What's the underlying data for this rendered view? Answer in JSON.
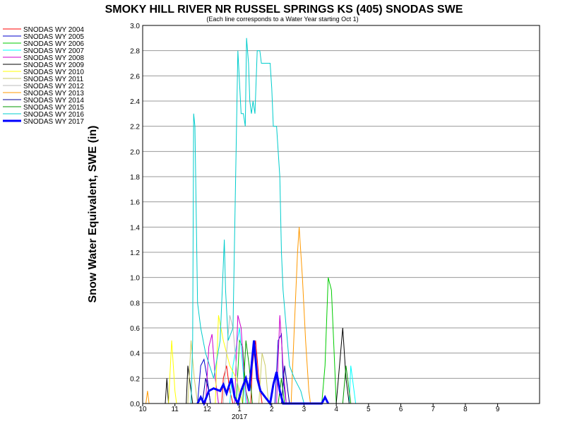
{
  "chart_data": {
    "type": "line",
    "title": "SMOKY HILL RIVER NR RUSSEL SPRINGS KS (405) SNODAS SWE",
    "subtitle": "(Each line corresponds to a Water Year starting Oct 1)",
    "ylabel": "Snow Water Equivalent, SWE (in)",
    "xlabel": "",
    "ylim": [
      0,
      3.0
    ],
    "yticks": [
      "0.0",
      "0.2",
      "0.4",
      "0.6",
      "0.8",
      "1.0",
      "1.2",
      "1.4",
      "1.6",
      "1.8",
      "2.0",
      "2.2",
      "2.4",
      "2.6",
      "2.8",
      "3.0"
    ],
    "xlim": [
      0,
      12.3
    ],
    "xticks": [
      {
        "value": 0.0,
        "label": "10"
      },
      {
        "value": 1.0,
        "label": "11"
      },
      {
        "value": 2.0,
        "label": "12"
      },
      {
        "value": 3.0,
        "label": "1"
      },
      {
        "value": 4.0,
        "label": "2"
      },
      {
        "value": 5.0,
        "label": "3"
      },
      {
        "value": 6.0,
        "label": "4"
      },
      {
        "value": 7.0,
        "label": "5"
      },
      {
        "value": 8.0,
        "label": "6"
      },
      {
        "value": 9.0,
        "label": "7"
      },
      {
        "value": 10.0,
        "label": "8"
      },
      {
        "value": 11.0,
        "label": "9"
      }
    ],
    "year_label": {
      "value": 3.0,
      "label": "2017"
    },
    "grid": true,
    "legend_position": "left",
    "series": [
      {
        "name": "SNODAS WY 2004",
        "color": "#ff0000",
        "width": 1,
        "points": [
          [
            2.45,
            0
          ],
          [
            2.5,
            0.2
          ],
          [
            2.6,
            0.3
          ],
          [
            2.7,
            0.1
          ],
          [
            2.8,
            0
          ],
          [
            3.35,
            0
          ],
          [
            3.4,
            0.3
          ],
          [
            3.5,
            0.5
          ],
          [
            3.6,
            0.2
          ],
          [
            3.7,
            0
          ]
        ]
      },
      {
        "name": "SNODAS WY 2005",
        "color": "#0000cc",
        "width": 1,
        "points": [
          [
            1.7,
            0
          ],
          [
            1.8,
            0.3
          ],
          [
            1.9,
            0.35
          ],
          [
            2.0,
            0.2
          ],
          [
            2.1,
            0
          ],
          [
            4.1,
            0
          ],
          [
            4.2,
            0.5
          ],
          [
            4.3,
            0.55
          ],
          [
            4.35,
            0.2
          ],
          [
            4.45,
            0
          ]
        ]
      },
      {
        "name": "SNODAS WY 2006",
        "color": "#00cc00",
        "width": 1,
        "points": [
          [
            2.9,
            0
          ],
          [
            3.0,
            0.5
          ],
          [
            3.1,
            0.45
          ],
          [
            3.2,
            0.1
          ],
          [
            3.3,
            0
          ],
          [
            5.55,
            0
          ],
          [
            5.65,
            0.3
          ],
          [
            5.75,
            1.0
          ],
          [
            5.85,
            0.9
          ],
          [
            5.95,
            0.3
          ],
          [
            6.0,
            0
          ]
        ]
      },
      {
        "name": "SNODAS WY 2007",
        "color": "#00ffff",
        "width": 1,
        "points": [
          [
            2.7,
            0
          ],
          [
            2.8,
            0.3
          ],
          [
            2.9,
            0.45
          ],
          [
            3.0,
            0.6
          ],
          [
            3.1,
            0.3
          ],
          [
            3.2,
            0
          ],
          [
            6.4,
            0
          ],
          [
            6.45,
            0.3
          ],
          [
            6.5,
            0.2
          ],
          [
            6.6,
            0
          ]
        ]
      },
      {
        "name": "SNODAS WY 2008",
        "color": "#cc00cc",
        "width": 1,
        "points": [
          [
            1.95,
            0
          ],
          [
            2.05,
            0.45
          ],
          [
            2.15,
            0.55
          ],
          [
            2.25,
            0.2
          ],
          [
            2.35,
            0
          ],
          [
            2.85,
            0
          ],
          [
            2.95,
            0.7
          ],
          [
            3.05,
            0.6
          ],
          [
            3.15,
            0.2
          ],
          [
            3.25,
            0
          ],
          [
            4.15,
            0
          ],
          [
            4.25,
            0.7
          ],
          [
            4.35,
            0.3
          ],
          [
            4.45,
            0
          ]
        ]
      },
      {
        "name": "SNODAS WY 2009",
        "color": "#000000",
        "width": 1,
        "points": [
          [
            0.7,
            0
          ],
          [
            0.75,
            0.2
          ],
          [
            0.8,
            0
          ],
          [
            1.35,
            0
          ],
          [
            1.4,
            0.3
          ],
          [
            1.5,
            0.1
          ],
          [
            1.55,
            0
          ],
          [
            6.0,
            0
          ],
          [
            6.1,
            0.3
          ],
          [
            6.2,
            0.6
          ],
          [
            6.3,
            0.2
          ],
          [
            6.4,
            0
          ]
        ]
      },
      {
        "name": "SNODAS WY 2010",
        "color": "#ffff00",
        "width": 1,
        "points": [
          [
            0.8,
            0
          ],
          [
            0.9,
            0.5
          ],
          [
            1.0,
            0.1
          ],
          [
            1.05,
            0
          ],
          [
            2.25,
            0
          ],
          [
            2.35,
            0.7
          ],
          [
            2.5,
            0.5
          ],
          [
            2.7,
            0.3
          ],
          [
            2.9,
            0.2
          ],
          [
            3.0,
            0.1
          ],
          [
            3.1,
            0
          ]
        ]
      },
      {
        "name": "SNODAS WY 2011",
        "color": "#cccc66",
        "width": 1,
        "points": [
          [
            1.4,
            0
          ],
          [
            1.5,
            0.5
          ],
          [
            1.6,
            0.2
          ],
          [
            1.7,
            0
          ],
          [
            3.6,
            0
          ],
          [
            3.7,
            0.4
          ],
          [
            3.8,
            0.3
          ],
          [
            3.9,
            0
          ]
        ]
      },
      {
        "name": "SNODAS WY 2012",
        "color": "#bbbbbb",
        "width": 1,
        "points": [
          [
            2.5,
            0
          ],
          [
            2.6,
            0.4
          ],
          [
            2.7,
            0.7
          ],
          [
            2.8,
            0.6
          ],
          [
            2.9,
            0.3
          ],
          [
            3.0,
            0
          ]
        ]
      },
      {
        "name": "SNODAS WY 2013",
        "color": "#ff9900",
        "width": 1,
        "points": [
          [
            0.1,
            0
          ],
          [
            0.15,
            0.1
          ],
          [
            0.2,
            0
          ],
          [
            4.6,
            0
          ],
          [
            4.7,
            0.6
          ],
          [
            4.8,
            1.2
          ],
          [
            4.85,
            1.4
          ],
          [
            4.95,
            1.0
          ],
          [
            5.05,
            0.5
          ],
          [
            5.15,
            0.1
          ],
          [
            5.2,
            0
          ]
        ]
      },
      {
        "name": "SNODAS WY 2014",
        "color": "#000099",
        "width": 1,
        "points": [
          [
            1.85,
            0
          ],
          [
            1.95,
            0.2
          ],
          [
            2.05,
            0.1
          ],
          [
            2.1,
            0
          ],
          [
            4.3,
            0
          ],
          [
            4.4,
            0.3
          ],
          [
            4.5,
            0.1
          ],
          [
            4.55,
            0
          ]
        ]
      },
      {
        "name": "SNODAS WY 2015",
        "color": "#009900",
        "width": 1,
        "points": [
          [
            3.1,
            0
          ],
          [
            3.2,
            0.5
          ],
          [
            3.3,
            0.3
          ],
          [
            3.4,
            0
          ],
          [
            4.2,
            0
          ],
          [
            4.3,
            0.2
          ],
          [
            4.4,
            0
          ],
          [
            6.2,
            0
          ],
          [
            6.3,
            0.3
          ],
          [
            6.4,
            0.1
          ],
          [
            6.45,
            0
          ]
        ]
      },
      {
        "name": "SNODAS WY 2016",
        "color": "#00cccc",
        "width": 1,
        "points": [
          [
            1.5,
            0
          ],
          [
            1.55,
            0.5
          ],
          [
            1.58,
            2.3
          ],
          [
            1.62,
            2.2
          ],
          [
            1.7,
            0.8
          ],
          [
            1.8,
            0.6
          ],
          [
            1.95,
            0.4
          ],
          [
            2.2,
            0.2
          ],
          [
            2.4,
            0.5
          ],
          [
            2.5,
            1.1
          ],
          [
            2.53,
            1.3
          ],
          [
            2.57,
            0.9
          ],
          [
            2.65,
            0.5
          ],
          [
            2.8,
            0.6
          ],
          [
            2.95,
            2.8
          ],
          [
            3.05,
            2.3
          ],
          [
            3.12,
            2.3
          ],
          [
            3.18,
            2.2
          ],
          [
            3.22,
            2.9
          ],
          [
            3.28,
            2.7
          ],
          [
            3.32,
            2.4
          ],
          [
            3.37,
            2.3
          ],
          [
            3.42,
            2.4
          ],
          [
            3.48,
            2.3
          ],
          [
            3.55,
            2.8
          ],
          [
            3.63,
            2.8
          ],
          [
            3.68,
            2.7
          ],
          [
            3.82,
            2.7
          ],
          [
            3.95,
            2.7
          ],
          [
            4.0,
            2.5
          ],
          [
            4.05,
            2.2
          ],
          [
            4.15,
            2.2
          ],
          [
            4.25,
            1.8
          ],
          [
            4.3,
            1.2
          ],
          [
            4.35,
            0.9
          ],
          [
            4.45,
            0.6
          ],
          [
            4.55,
            0.3
          ],
          [
            4.7,
            0.2
          ],
          [
            4.9,
            0.1
          ],
          [
            5.0,
            0
          ]
        ]
      },
      {
        "name": "SNODAS WY 2017",
        "color": "#0000ff",
        "width": 3,
        "points": [
          [
            1.7,
            0
          ],
          [
            1.8,
            0.05
          ],
          [
            1.9,
            0
          ],
          [
            2.05,
            0.1
          ],
          [
            2.2,
            0.12
          ],
          [
            2.4,
            0.1
          ],
          [
            2.5,
            0.15
          ],
          [
            2.6,
            0.08
          ],
          [
            2.75,
            0.2
          ],
          [
            2.85,
            0.05
          ],
          [
            2.95,
            0
          ],
          [
            3.05,
            0.1
          ],
          [
            3.2,
            0.2
          ],
          [
            3.3,
            0.1
          ],
          [
            3.45,
            0.5
          ],
          [
            3.55,
            0.2
          ],
          [
            3.65,
            0.1
          ],
          [
            3.8,
            0.05
          ],
          [
            3.95,
            0
          ],
          [
            4.05,
            0.15
          ],
          [
            4.15,
            0.25
          ],
          [
            4.25,
            0.1
          ],
          [
            4.35,
            0
          ],
          [
            5.55,
            0
          ],
          [
            5.65,
            0.05
          ],
          [
            5.75,
            0
          ]
        ]
      }
    ]
  }
}
